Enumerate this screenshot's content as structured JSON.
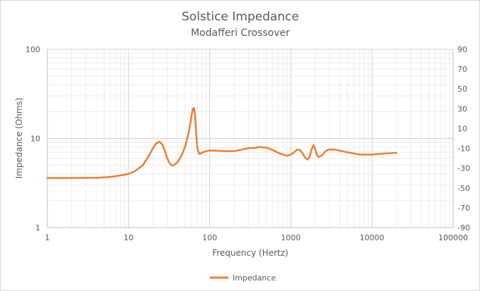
{
  "chart_data": {
    "type": "line",
    "title": "Solstice Impedance",
    "subtitle": "Modafferi Crossover",
    "xlabel": "Frequency (Hertz)",
    "ylabel": "Impedance (Ohms)",
    "x_scale": "log",
    "y_scale": "log",
    "xlim": [
      1,
      100000
    ],
    "ylim": [
      1,
      100
    ],
    "y2lim": [
      -90,
      90
    ],
    "x_ticks": [
      "1",
      "10",
      "100",
      "1000",
      "10000",
      "100000"
    ],
    "y_ticks": [
      "1",
      "10",
      "100"
    ],
    "y2_ticks": [
      "-90",
      "-70",
      "-50",
      "-30",
      "-10",
      "10",
      "30",
      "50",
      "70",
      "90"
    ],
    "grid": true,
    "legend_position": "bottom",
    "series": [
      {
        "name": "Impedance",
        "color": "#ed7d31",
        "x": [
          1,
          2,
          4,
          6,
          8,
          10,
          12,
          15,
          18,
          20,
          22,
          24,
          26,
          28,
          30,
          32,
          34,
          36,
          40,
          45,
          50,
          55,
          58,
          60,
          62,
          64,
          66,
          68,
          70,
          72,
          75,
          80,
          90,
          100,
          120,
          150,
          200,
          250,
          300,
          350,
          400,
          500,
          600,
          700,
          800,
          900,
          1000,
          1100,
          1200,
          1300,
          1400,
          1500,
          1600,
          1700,
          1800,
          1900,
          2000,
          2100,
          2200,
          2400,
          2600,
          2800,
          3000,
          3500,
          4000,
          5000,
          6000,
          7000,
          8000,
          10000,
          12000,
          15000,
          20000
        ],
        "values": [
          3.6,
          3.6,
          3.62,
          3.7,
          3.85,
          4.0,
          4.3,
          5.0,
          6.5,
          7.8,
          8.8,
          9.2,
          8.6,
          7.3,
          6.0,
          5.3,
          5.0,
          5.0,
          5.4,
          6.4,
          8.2,
          11.5,
          15.0,
          18.5,
          21.5,
          22.0,
          18.5,
          12.0,
          8.2,
          7.2,
          6.7,
          6.9,
          7.2,
          7.3,
          7.3,
          7.2,
          7.2,
          7.5,
          7.8,
          7.8,
          8.0,
          7.9,
          7.4,
          6.9,
          6.6,
          6.4,
          6.6,
          7.0,
          7.5,
          7.4,
          6.8,
          6.1,
          5.8,
          6.2,
          7.5,
          8.4,
          7.6,
          6.5,
          6.2,
          6.4,
          7.0,
          7.4,
          7.5,
          7.5,
          7.3,
          7.0,
          6.8,
          6.6,
          6.6,
          6.6,
          6.7,
          6.8,
          6.9
        ]
      }
    ]
  }
}
